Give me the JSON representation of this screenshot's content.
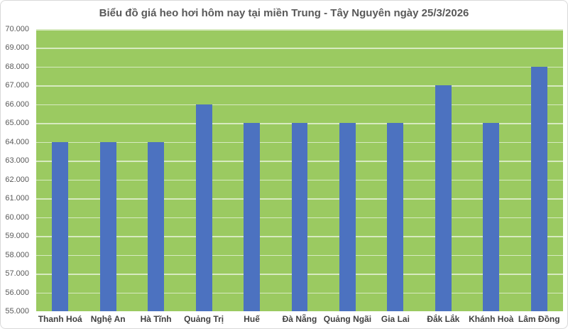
{
  "title": "Biểu đồ giá heo hơi hôm nay tại miền Trung - Tây Nguyên ngày 25/3/2026",
  "chart_data": {
    "type": "bar",
    "title": "Biểu đồ giá heo hơi hôm nay tại miền Trung - Tây Nguyên ngày 25/3/2026",
    "categories": [
      "Thanh Hoá",
      "Nghệ An",
      "Hà Tĩnh",
      "Quảng Trị",
      "Huế",
      "Đà Nẵng",
      "Quảng Ngãi",
      "Gia Lai",
      "Đắk Lắk",
      "Khánh Hoà",
      "Lâm Đồng"
    ],
    "values": [
      64000,
      64000,
      64000,
      66000,
      65000,
      65000,
      65000,
      65000,
      67000,
      65000,
      68000
    ],
    "xlabel": "",
    "ylabel": "",
    "ylim": [
      55000,
      70000
    ],
    "y_tick_step": 1000,
    "y_tick_labels": [
      "70.000",
      "69.000",
      "68.000",
      "67.000",
      "66.000",
      "65.000",
      "64.000",
      "63.000",
      "62.000",
      "61.000",
      "60.000",
      "59.000",
      "58.000",
      "57.000",
      "56.000",
      "55.000"
    ],
    "grid": true,
    "legend": "none",
    "colors": {
      "bar": "#4C72C0",
      "plot_bg": "#9BCA61",
      "gridline": "rgba(255,255,255,0.6)",
      "title": "#595959",
      "tick": "#595959",
      "category": "#404040",
      "border": "#D9D9D9",
      "page_bg": "#FFFFFF"
    }
  }
}
